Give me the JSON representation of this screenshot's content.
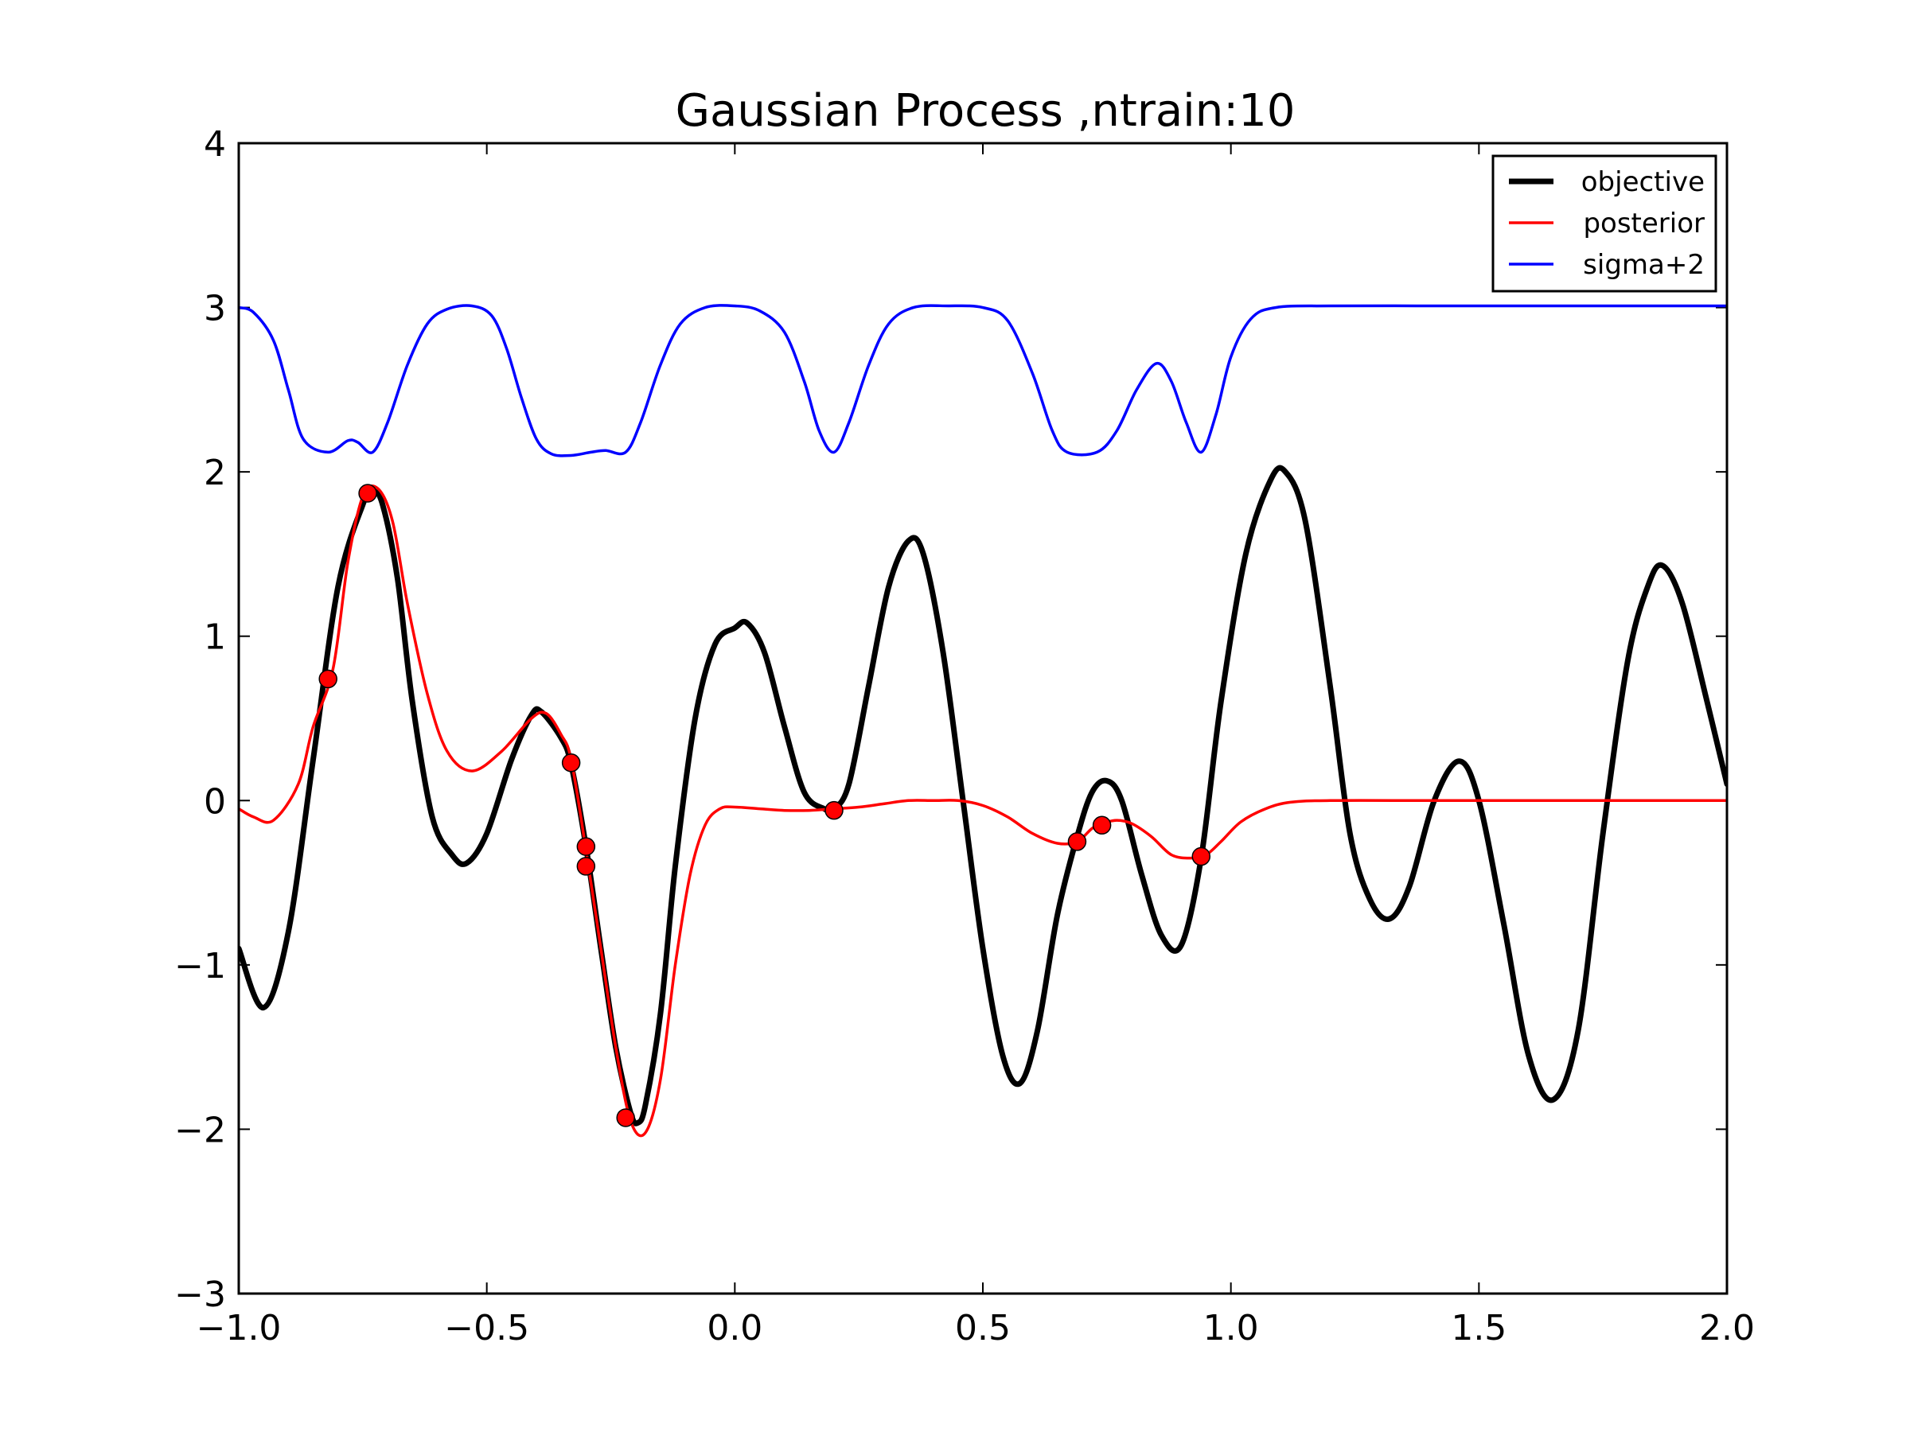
{
  "chart_data": {
    "type": "line",
    "title": "Gaussian Process ,ntrain:10",
    "xlabel": "",
    "ylabel": "",
    "xlim": [
      -1.0,
      2.0
    ],
    "ylim": [
      -3,
      4
    ],
    "x_ticks": [
      -1.0,
      -0.5,
      0.0,
      0.5,
      1.0,
      1.5,
      2.0
    ],
    "x_tick_labels": [
      "−1.0",
      "−0.5",
      "0.0",
      "0.5",
      "1.0",
      "1.5",
      "2.0"
    ],
    "y_ticks": [
      -3,
      -2,
      -1,
      0,
      1,
      2,
      3,
      4
    ],
    "y_tick_labels": [
      "−3",
      "−2",
      "−1",
      "0",
      "1",
      "2",
      "3",
      "4"
    ],
    "grid": false,
    "legend_position": "top-right",
    "series": [
      {
        "name": "objective",
        "color": "#000000",
        "points": [
          [
            -1.0,
            -0.9
          ],
          [
            -0.95,
            -1.26
          ],
          [
            -0.9,
            -0.8
          ],
          [
            -0.85,
            0.25
          ],
          [
            -0.8,
            1.3
          ],
          [
            -0.75,
            1.8
          ],
          [
            -0.73,
            1.88
          ],
          [
            -0.71,
            1.8
          ],
          [
            -0.68,
            1.35
          ],
          [
            -0.65,
            0.6
          ],
          [
            -0.61,
            -0.1
          ],
          [
            -0.57,
            -0.33
          ],
          [
            -0.54,
            -0.38
          ],
          [
            -0.5,
            -0.2
          ],
          [
            -0.45,
            0.25
          ],
          [
            -0.41,
            0.52
          ],
          [
            -0.39,
            0.54
          ],
          [
            -0.35,
            0.38
          ],
          [
            -0.33,
            0.22
          ],
          [
            -0.3,
            -0.28
          ],
          [
            -0.27,
            -0.9
          ],
          [
            -0.24,
            -1.5
          ],
          [
            -0.21,
            -1.9
          ],
          [
            -0.195,
            -1.96
          ],
          [
            -0.18,
            -1.85
          ],
          [
            -0.15,
            -1.3
          ],
          [
            -0.12,
            -0.4
          ],
          [
            -0.08,
            0.5
          ],
          [
            -0.04,
            0.95
          ],
          [
            0.0,
            1.05
          ],
          [
            0.025,
            1.08
          ],
          [
            0.06,
            0.9
          ],
          [
            0.1,
            0.45
          ],
          [
            0.14,
            0.05
          ],
          [
            0.18,
            -0.05
          ],
          [
            0.2,
            -0.05
          ],
          [
            0.23,
            0.1
          ],
          [
            0.27,
            0.7
          ],
          [
            0.31,
            1.3
          ],
          [
            0.35,
            1.58
          ],
          [
            0.38,
            1.5
          ],
          [
            0.42,
            0.9
          ],
          [
            0.46,
            0.0
          ],
          [
            0.5,
            -0.9
          ],
          [
            0.54,
            -1.55
          ],
          [
            0.575,
            -1.72
          ],
          [
            0.61,
            -1.4
          ],
          [
            0.65,
            -0.7
          ],
          [
            0.69,
            -0.22
          ],
          [
            0.72,
            0.05
          ],
          [
            0.75,
            0.12
          ],
          [
            0.78,
            0.0
          ],
          [
            0.82,
            -0.45
          ],
          [
            0.86,
            -0.82
          ],
          [
            0.9,
            -0.88
          ],
          [
            0.94,
            -0.35
          ],
          [
            0.98,
            0.6
          ],
          [
            1.03,
            1.5
          ],
          [
            1.08,
            1.95
          ],
          [
            1.11,
            2.0
          ],
          [
            1.15,
            1.7
          ],
          [
            1.2,
            0.7
          ],
          [
            1.24,
            -0.2
          ],
          [
            1.28,
            -0.6
          ],
          [
            1.32,
            -0.72
          ],
          [
            1.36,
            -0.52
          ],
          [
            1.41,
            0.0
          ],
          [
            1.46,
            0.24
          ],
          [
            1.5,
            0.0
          ],
          [
            1.55,
            -0.75
          ],
          [
            1.6,
            -1.55
          ],
          [
            1.65,
            -1.82
          ],
          [
            1.7,
            -1.4
          ],
          [
            1.75,
            -0.2
          ],
          [
            1.8,
            0.85
          ],
          [
            1.84,
            1.3
          ],
          [
            1.87,
            1.43
          ],
          [
            1.91,
            1.2
          ],
          [
            1.96,
            0.6
          ],
          [
            2.0,
            0.1
          ]
        ]
      },
      {
        "name": "posterior",
        "color": "#ff0000",
        "points": [
          [
            -1.0,
            -0.05
          ],
          [
            -0.97,
            -0.1
          ],
          [
            -0.93,
            -0.12
          ],
          [
            -0.88,
            0.1
          ],
          [
            -0.85,
            0.45
          ],
          [
            -0.81,
            0.8
          ],
          [
            -0.78,
            1.45
          ],
          [
            -0.75,
            1.85
          ],
          [
            -0.72,
            1.9
          ],
          [
            -0.69,
            1.7
          ],
          [
            -0.66,
            1.2
          ],
          [
            -0.62,
            0.65
          ],
          [
            -0.58,
            0.3
          ],
          [
            -0.53,
            0.18
          ],
          [
            -0.47,
            0.3
          ],
          [
            -0.41,
            0.5
          ],
          [
            -0.38,
            0.53
          ],
          [
            -0.35,
            0.4
          ],
          [
            -0.33,
            0.25
          ],
          [
            -0.3,
            -0.3
          ],
          [
            -0.27,
            -0.9
          ],
          [
            -0.24,
            -1.5
          ],
          [
            -0.21,
            -1.95
          ],
          [
            -0.18,
            -2.02
          ],
          [
            -0.15,
            -1.7
          ],
          [
            -0.12,
            -1.0
          ],
          [
            -0.09,
            -0.45
          ],
          [
            -0.06,
            -0.15
          ],
          [
            -0.03,
            -0.05
          ],
          [
            0.0,
            -0.04
          ],
          [
            0.05,
            -0.05
          ],
          [
            0.1,
            -0.06
          ],
          [
            0.15,
            -0.06
          ],
          [
            0.2,
            -0.05
          ],
          [
            0.25,
            -0.04
          ],
          [
            0.3,
            -0.02
          ],
          [
            0.35,
            0.0
          ],
          [
            0.4,
            0.0
          ],
          [
            0.45,
            0.0
          ],
          [
            0.5,
            -0.03
          ],
          [
            0.55,
            -0.1
          ],
          [
            0.6,
            -0.2
          ],
          [
            0.65,
            -0.26
          ],
          [
            0.69,
            -0.25
          ],
          [
            0.72,
            -0.17
          ],
          [
            0.74,
            -0.14
          ],
          [
            0.77,
            -0.12
          ],
          [
            0.8,
            -0.14
          ],
          [
            0.84,
            -0.22
          ],
          [
            0.88,
            -0.33
          ],
          [
            0.92,
            -0.35
          ],
          [
            0.95,
            -0.33
          ],
          [
            0.98,
            -0.25
          ],
          [
            1.02,
            -0.13
          ],
          [
            1.07,
            -0.05
          ],
          [
            1.12,
            -0.01
          ],
          [
            1.2,
            0.0
          ],
          [
            1.4,
            0.0
          ],
          [
            1.6,
            0.0
          ],
          [
            1.8,
            0.0
          ],
          [
            2.0,
            0.0
          ]
        ]
      },
      {
        "name": "sigma+2",
        "color": "#0000ff",
        "points": [
          [
            -1.0,
            3.0
          ],
          [
            -0.97,
            2.97
          ],
          [
            -0.93,
            2.8
          ],
          [
            -0.9,
            2.5
          ],
          [
            -0.87,
            2.2
          ],
          [
            -0.82,
            2.12
          ],
          [
            -0.78,
            2.19
          ],
          [
            -0.76,
            2.18
          ],
          [
            -0.73,
            2.12
          ],
          [
            -0.7,
            2.3
          ],
          [
            -0.66,
            2.65
          ],
          [
            -0.62,
            2.9
          ],
          [
            -0.58,
            2.99
          ],
          [
            -0.53,
            3.01
          ],
          [
            -0.49,
            2.95
          ],
          [
            -0.46,
            2.75
          ],
          [
            -0.43,
            2.45
          ],
          [
            -0.4,
            2.2
          ],
          [
            -0.37,
            2.11
          ],
          [
            -0.33,
            2.1
          ],
          [
            -0.29,
            2.12
          ],
          [
            -0.26,
            2.13
          ],
          [
            -0.22,
            2.12
          ],
          [
            -0.19,
            2.3
          ],
          [
            -0.15,
            2.65
          ],
          [
            -0.11,
            2.9
          ],
          [
            -0.06,
            3.0
          ],
          [
            0.0,
            3.01
          ],
          [
            0.05,
            2.98
          ],
          [
            0.1,
            2.85
          ],
          [
            0.14,
            2.55
          ],
          [
            0.17,
            2.25
          ],
          [
            0.2,
            2.12
          ],
          [
            0.23,
            2.3
          ],
          [
            0.27,
            2.65
          ],
          [
            0.31,
            2.9
          ],
          [
            0.36,
            3.0
          ],
          [
            0.43,
            3.01
          ],
          [
            0.5,
            3.0
          ],
          [
            0.55,
            2.92
          ],
          [
            0.6,
            2.6
          ],
          [
            0.64,
            2.25
          ],
          [
            0.67,
            2.12
          ],
          [
            0.73,
            2.12
          ],
          [
            0.77,
            2.25
          ],
          [
            0.81,
            2.5
          ],
          [
            0.85,
            2.66
          ],
          [
            0.88,
            2.55
          ],
          [
            0.91,
            2.3
          ],
          [
            0.94,
            2.12
          ],
          [
            0.97,
            2.35
          ],
          [
            1.0,
            2.7
          ],
          [
            1.04,
            2.93
          ],
          [
            1.09,
            3.0
          ],
          [
            1.2,
            3.01
          ],
          [
            1.4,
            3.01
          ],
          [
            1.6,
            3.01
          ],
          [
            1.8,
            3.01
          ],
          [
            2.0,
            3.01
          ]
        ]
      }
    ],
    "train_points": {
      "color": "#ff0000",
      "points": [
        [
          -0.82,
          0.74
        ],
        [
          -0.74,
          1.87
        ],
        [
          -0.33,
          0.23
        ],
        [
          -0.3,
          -0.28
        ],
        [
          -0.3,
          -0.4
        ],
        [
          -0.22,
          -1.93
        ],
        [
          0.2,
          -0.06
        ],
        [
          0.69,
          -0.25
        ],
        [
          0.74,
          -0.15
        ],
        [
          0.94,
          -0.34
        ]
      ]
    }
  }
}
